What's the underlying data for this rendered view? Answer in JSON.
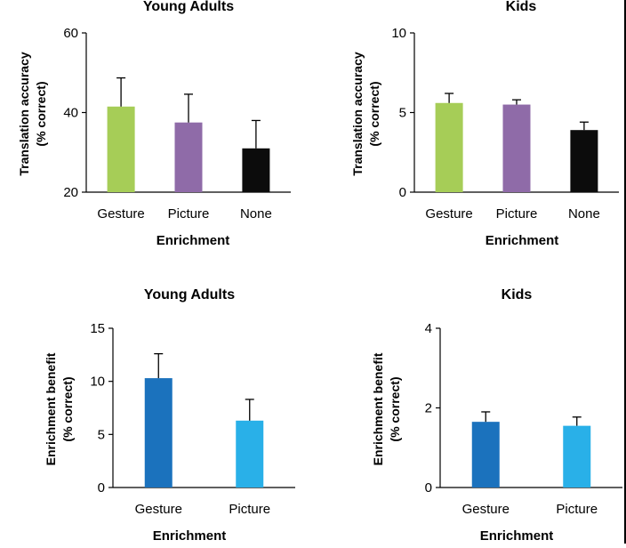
{
  "colors": {
    "gesture_green": "#a6cd57",
    "picture_purple": "#8f6ba8",
    "none_black": "#0c0c0c",
    "gesture_blue": "#1b72bd",
    "picture_cyan": "#29b0e8",
    "axis": "#000000"
  },
  "chart_data": [
    {
      "type": "bar",
      "title": "Young Adults",
      "xlabel": "Enrichment",
      "ylabel": [
        "Translation accuracy",
        "(% correct)"
      ],
      "categories": [
        "Gesture",
        "Picture",
        "None"
      ],
      "values": [
        41.5,
        37.5,
        31
      ],
      "errors": [
        7.2,
        7.1,
        7
      ],
      "ylim": [
        20,
        60
      ],
      "yticks": [
        "20",
        "40",
        "60"
      ],
      "ytick_values": [
        20,
        40,
        60
      ],
      "bar_colors": [
        "#a6cd57",
        "#8f6ba8",
        "#0c0c0c"
      ],
      "grid": false
    },
    {
      "type": "bar",
      "title": "Kids",
      "xlabel": "Enrichment",
      "ylabel": [
        "Translation accuracy",
        "(% correct)"
      ],
      "categories": [
        "Gesture",
        "Picture",
        "None"
      ],
      "values": [
        5.6,
        5.5,
        3.9
      ],
      "errors": [
        0.6,
        0.3,
        0.5
      ],
      "ylim": [
        0,
        10
      ],
      "yticks": [
        "0",
        "5",
        "10"
      ],
      "ytick_values": [
        0,
        5,
        10
      ],
      "bar_colors": [
        "#a6cd57",
        "#8f6ba8",
        "#0c0c0c"
      ],
      "grid": false
    },
    {
      "type": "bar",
      "title": "Young Adults",
      "xlabel": "Enrichment",
      "ylabel": [
        "Enrichment benefit",
        "(% correct)"
      ],
      "categories": [
        "Gesture",
        "Picture"
      ],
      "values": [
        10.3,
        6.3
      ],
      "errors": [
        2.3,
        2.0
      ],
      "ylim": [
        0,
        15
      ],
      "yticks": [
        "0",
        "5",
        "10",
        "15"
      ],
      "ytick_values": [
        0,
        5,
        10,
        15
      ],
      "bar_colors": [
        "#1b72bd",
        "#29b0e8"
      ],
      "grid": false
    },
    {
      "type": "bar",
      "title": "Kids",
      "xlabel": "Enrichment",
      "ylabel": [
        "Enrichment benefit",
        "(% correct)"
      ],
      "categories": [
        "Gesture",
        "Picture"
      ],
      "values": [
        1.65,
        1.55
      ],
      "errors": [
        0.25,
        0.22
      ],
      "ylim": [
        0,
        4
      ],
      "yticks": [
        "0",
        "2",
        "4"
      ],
      "ytick_values": [
        0,
        2,
        4
      ],
      "bar_colors": [
        "#1b72bd",
        "#29b0e8"
      ],
      "grid": false
    }
  ]
}
